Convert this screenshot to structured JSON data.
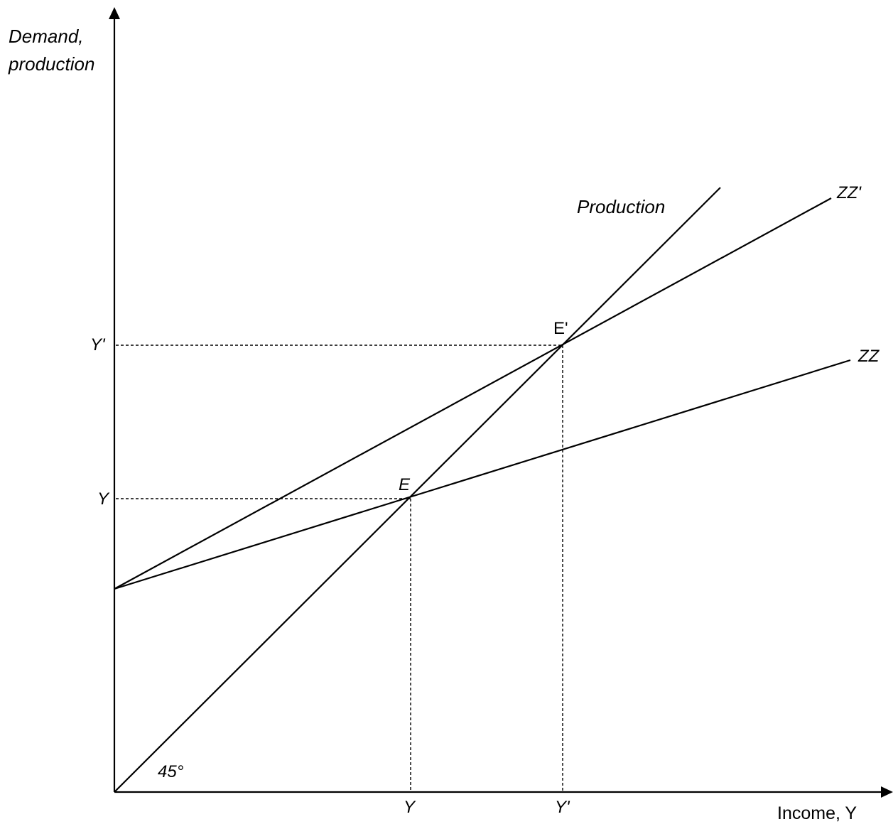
{
  "diagram": {
    "y_axis_label": [
      "Demand,",
      "production"
    ],
    "x_axis_label": "Income, Y",
    "production_label": "Production",
    "zz_prime_label": "ZZ'",
    "zz_label": "ZZ",
    "point_e_prime": "E'",
    "point_e": "E",
    "y_tick_y_prime": "Y'",
    "y_tick_y": "Y",
    "x_tick_y": "Y",
    "x_tick_y_prime": "Y'",
    "angle_label": "45°"
  }
}
